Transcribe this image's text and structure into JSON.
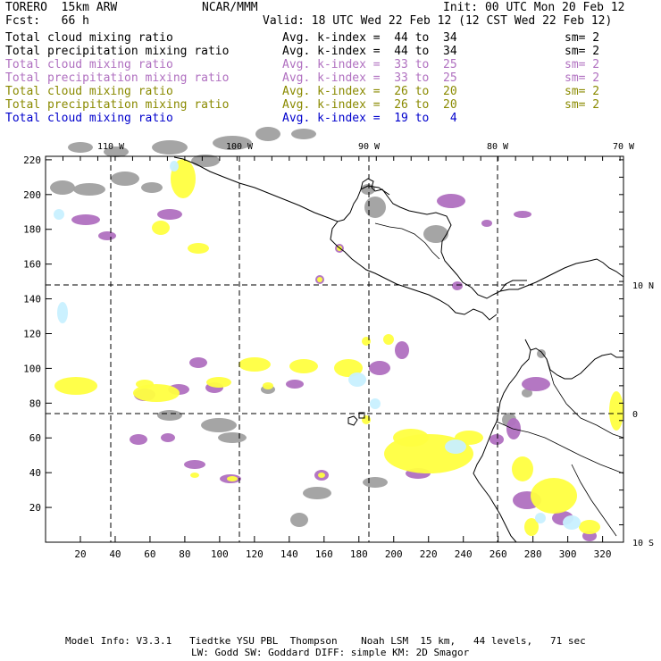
{
  "header": {
    "model": "TORERO  15km ARW",
    "org": "NCAR/MMM",
    "init": "Init: 00 UTC Mon 20 Feb 12",
    "fcst": "Fcst:   66 h",
    "valid": "Valid: 18 UTC Wed 22 Feb 12 (12 CST Wed 22 Feb 12)"
  },
  "legend": [
    {
      "field": "Total cloud mixing ratio",
      "kindex": "Avg. k-index =  44 to  34",
      "sm": "sm= 2",
      "color": "#000000"
    },
    {
      "field": "Total precipitation mixing ratio",
      "kindex": "Avg. k-index =  44 to  34",
      "sm": "sm= 2",
      "color": "#000000"
    },
    {
      "field": "Total cloud mixing ratio",
      "kindex": "Avg. k-index =  33 to  25",
      "sm": "sm= 2",
      "color": "#b070c0"
    },
    {
      "field": "Total precipitation mixing ratio",
      "kindex": "Avg. k-index =  33 to  25",
      "sm": "sm= 2",
      "color": "#b070c0"
    },
    {
      "field": "Total cloud mixing ratio",
      "kindex": "Avg. k-index =  26 to  20",
      "sm": "sm= 2",
      "color": "#8a8a00"
    },
    {
      "field": "Total precipitation mixing ratio",
      "kindex": "Avg. k-index =  26 to  20",
      "sm": "sm= 2",
      "color": "#8a8a00"
    },
    {
      "field": "Total cloud mixing ratio",
      "kindex": "Avg. k-index =  19 to   4",
      "sm": "",
      "color": "#0000cc"
    }
  ],
  "map": {
    "lon_labels": [
      "110 W",
      "100 W",
      "90 W",
      "80 W",
      "70 W"
    ],
    "lat_labels": [
      "10 N",
      "0",
      "10 S"
    ],
    "x_ticks": [
      "20",
      "40",
      "60",
      "80",
      "100",
      "120",
      "140",
      "160",
      "180",
      "200",
      "220",
      "240",
      "260",
      "280",
      "300",
      "320"
    ],
    "y_ticks": [
      "220",
      "200",
      "180",
      "160",
      "140",
      "120",
      "100",
      "80",
      "60",
      "40",
      "20"
    ],
    "colors": {
      "gray": "#a0a0a0",
      "purple": "#b070c0",
      "yellow": "#ffff40",
      "lightblue": "#c8f0ff",
      "coast": "#000000"
    }
  },
  "footer": {
    "line1": "Model Info: V3.3.1   Tiedtke YSU PBL  Thompson    Noah LSM  15 km,   44 levels,   71 sec",
    "line2": "LW: Godd SW: Goddard DIFF: simple KM: 2D Smagor"
  }
}
